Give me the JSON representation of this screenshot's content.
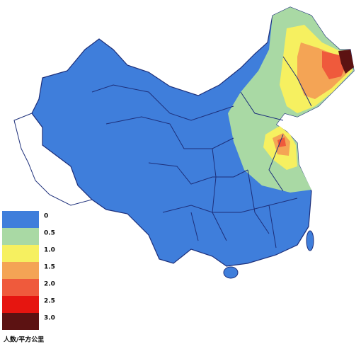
{
  "legend": {
    "title": "人数/平方公里",
    "items": [
      {
        "label": "0",
        "color": "#3f7edb"
      },
      {
        "label": "0.5",
        "color": "#a9d9a4"
      },
      {
        "label": "1.0",
        "color": "#f6f060"
      },
      {
        "label": "1.5",
        "color": "#f4a455"
      },
      {
        "label": "2.0",
        "color": "#ef5a3c"
      },
      {
        "label": "2.5",
        "color": "#e61510"
      },
      {
        "label": "3.0",
        "color": "#5c1212"
      }
    ]
  }
}
